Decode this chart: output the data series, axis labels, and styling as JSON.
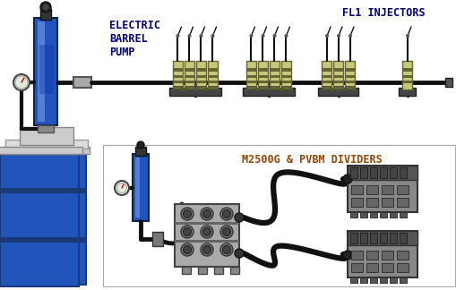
{
  "label_pump_top": "ELECTRIC\nBARREL\nPUMP",
  "label_fl1": "FL1 INJECTORS",
  "label_dividers": "M2500G & PVBM DIVIDERS",
  "bg_color": "#ffffff",
  "pump_body_color": "#2255bb",
  "pump_dark": "#111111",
  "pump_highlight": "#88aaee",
  "injector_color": "#c8c87a",
  "injector_dark": "#666633",
  "pipe_color": "#111111",
  "barrel_color": "#2255bb",
  "divider_block_color": "#999999",
  "divider_dark": "#555555",
  "cylinder_color": "#aaaaaa",
  "label_color": "#000077",
  "divider_label_color": "#994400",
  "separator_color": "#aaaaaa",
  "fig_width": 5.1,
  "fig_height": 3.24,
  "dpi": 100
}
